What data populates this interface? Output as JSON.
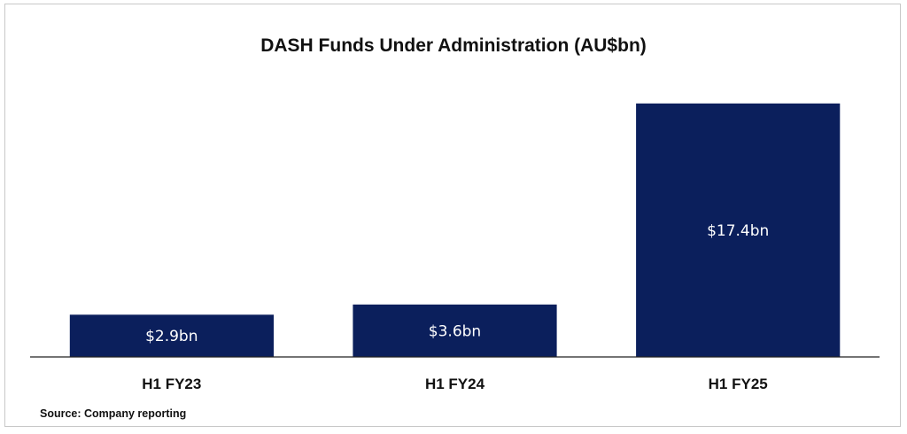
{
  "chart_data": {
    "type": "bar",
    "title": "DASH Funds Under Administration (AU$bn)",
    "categories": [
      "H1 FY23",
      "H1 FY24",
      "H1 FY25"
    ],
    "values": [
      2.9,
      3.6,
      17.4
    ],
    "data_labels": [
      "$2.9bn",
      "$3.6bn",
      "$17.4bn"
    ],
    "xlabel": "",
    "ylabel": "",
    "ylim": [
      0,
      20
    ],
    "grid": false,
    "legend": "none",
    "bar_color": "#0b1f5c",
    "source": "Source: Company reporting"
  }
}
